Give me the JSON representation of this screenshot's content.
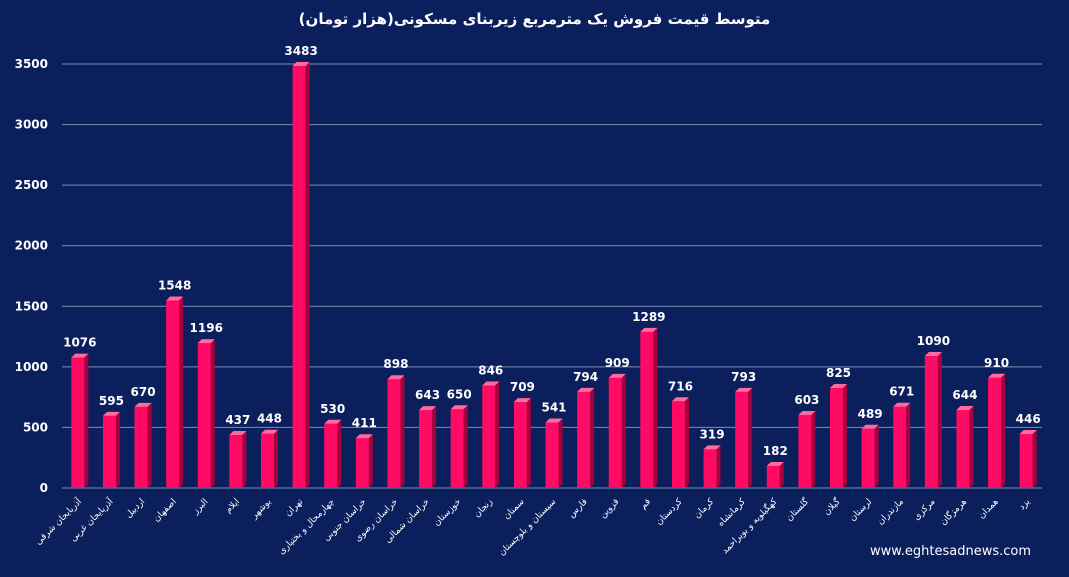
{
  "chart_data": {
    "type": "bar",
    "title": "متوسط قیمت فروش یک مترمربع زیربنای مسکونی(هزار تومان)",
    "xlabel": "",
    "ylabel": "",
    "ylim": [
      0,
      3500
    ],
    "yticks": [
      0,
      500,
      1000,
      1500,
      2000,
      2500,
      3000,
      3500
    ],
    "grid": true,
    "categories": [
      "آذربایجان شرقی",
      "آذربایجان غربی",
      "اردبیل",
      "اصفهان",
      "البرز",
      "ایلام",
      "بوشهر",
      "تهران",
      "چهارمحال و بختیاری",
      "خراسان جنوبی",
      "خراسان رضوی",
      "خراسان شمالی",
      "خوزستان",
      "زنجان",
      "سمنان",
      "سیستان و بلوچستان",
      "فارس",
      "قزوین",
      "قم",
      "کردستان",
      "کرمان",
      "کرمانشاه",
      "کهگیلویه و بویراحمد",
      "گلستان",
      "گیلان",
      "لرستان",
      "مازندران",
      "مرکزی",
      "هرمزگان",
      "همدان",
      "یزد"
    ],
    "values": [
      1076,
      595,
      670,
      1548,
      1196,
      437,
      448,
      3483,
      530,
      411,
      898,
      643,
      650,
      846,
      709,
      541,
      794,
      909,
      1289,
      716,
      319,
      793,
      182,
      603,
      825,
      489,
      671,
      1090,
      644,
      910,
      446
    ],
    "data_labels": [
      "1076",
      "595",
      "670",
      "1548",
      "1196",
      "437",
      "448",
      "3483",
      "530",
      "411",
      "898",
      "643",
      "650",
      "846",
      "709",
      "541",
      "794",
      "909",
      "1289",
      "716",
      "319",
      "793",
      "182",
      "603",
      "825",
      "489",
      "671",
      "1090",
      "644",
      "910",
      "446"
    ]
  },
  "colors": {
    "background": "#0a1f5c",
    "bar_front": "#ff0a64",
    "bar_side": "#a8003c",
    "bar_top": "#ff6a9e",
    "grid": "#7f8fb3",
    "text": "#ffffff"
  },
  "watermark": "www.eghtesadnews.com"
}
